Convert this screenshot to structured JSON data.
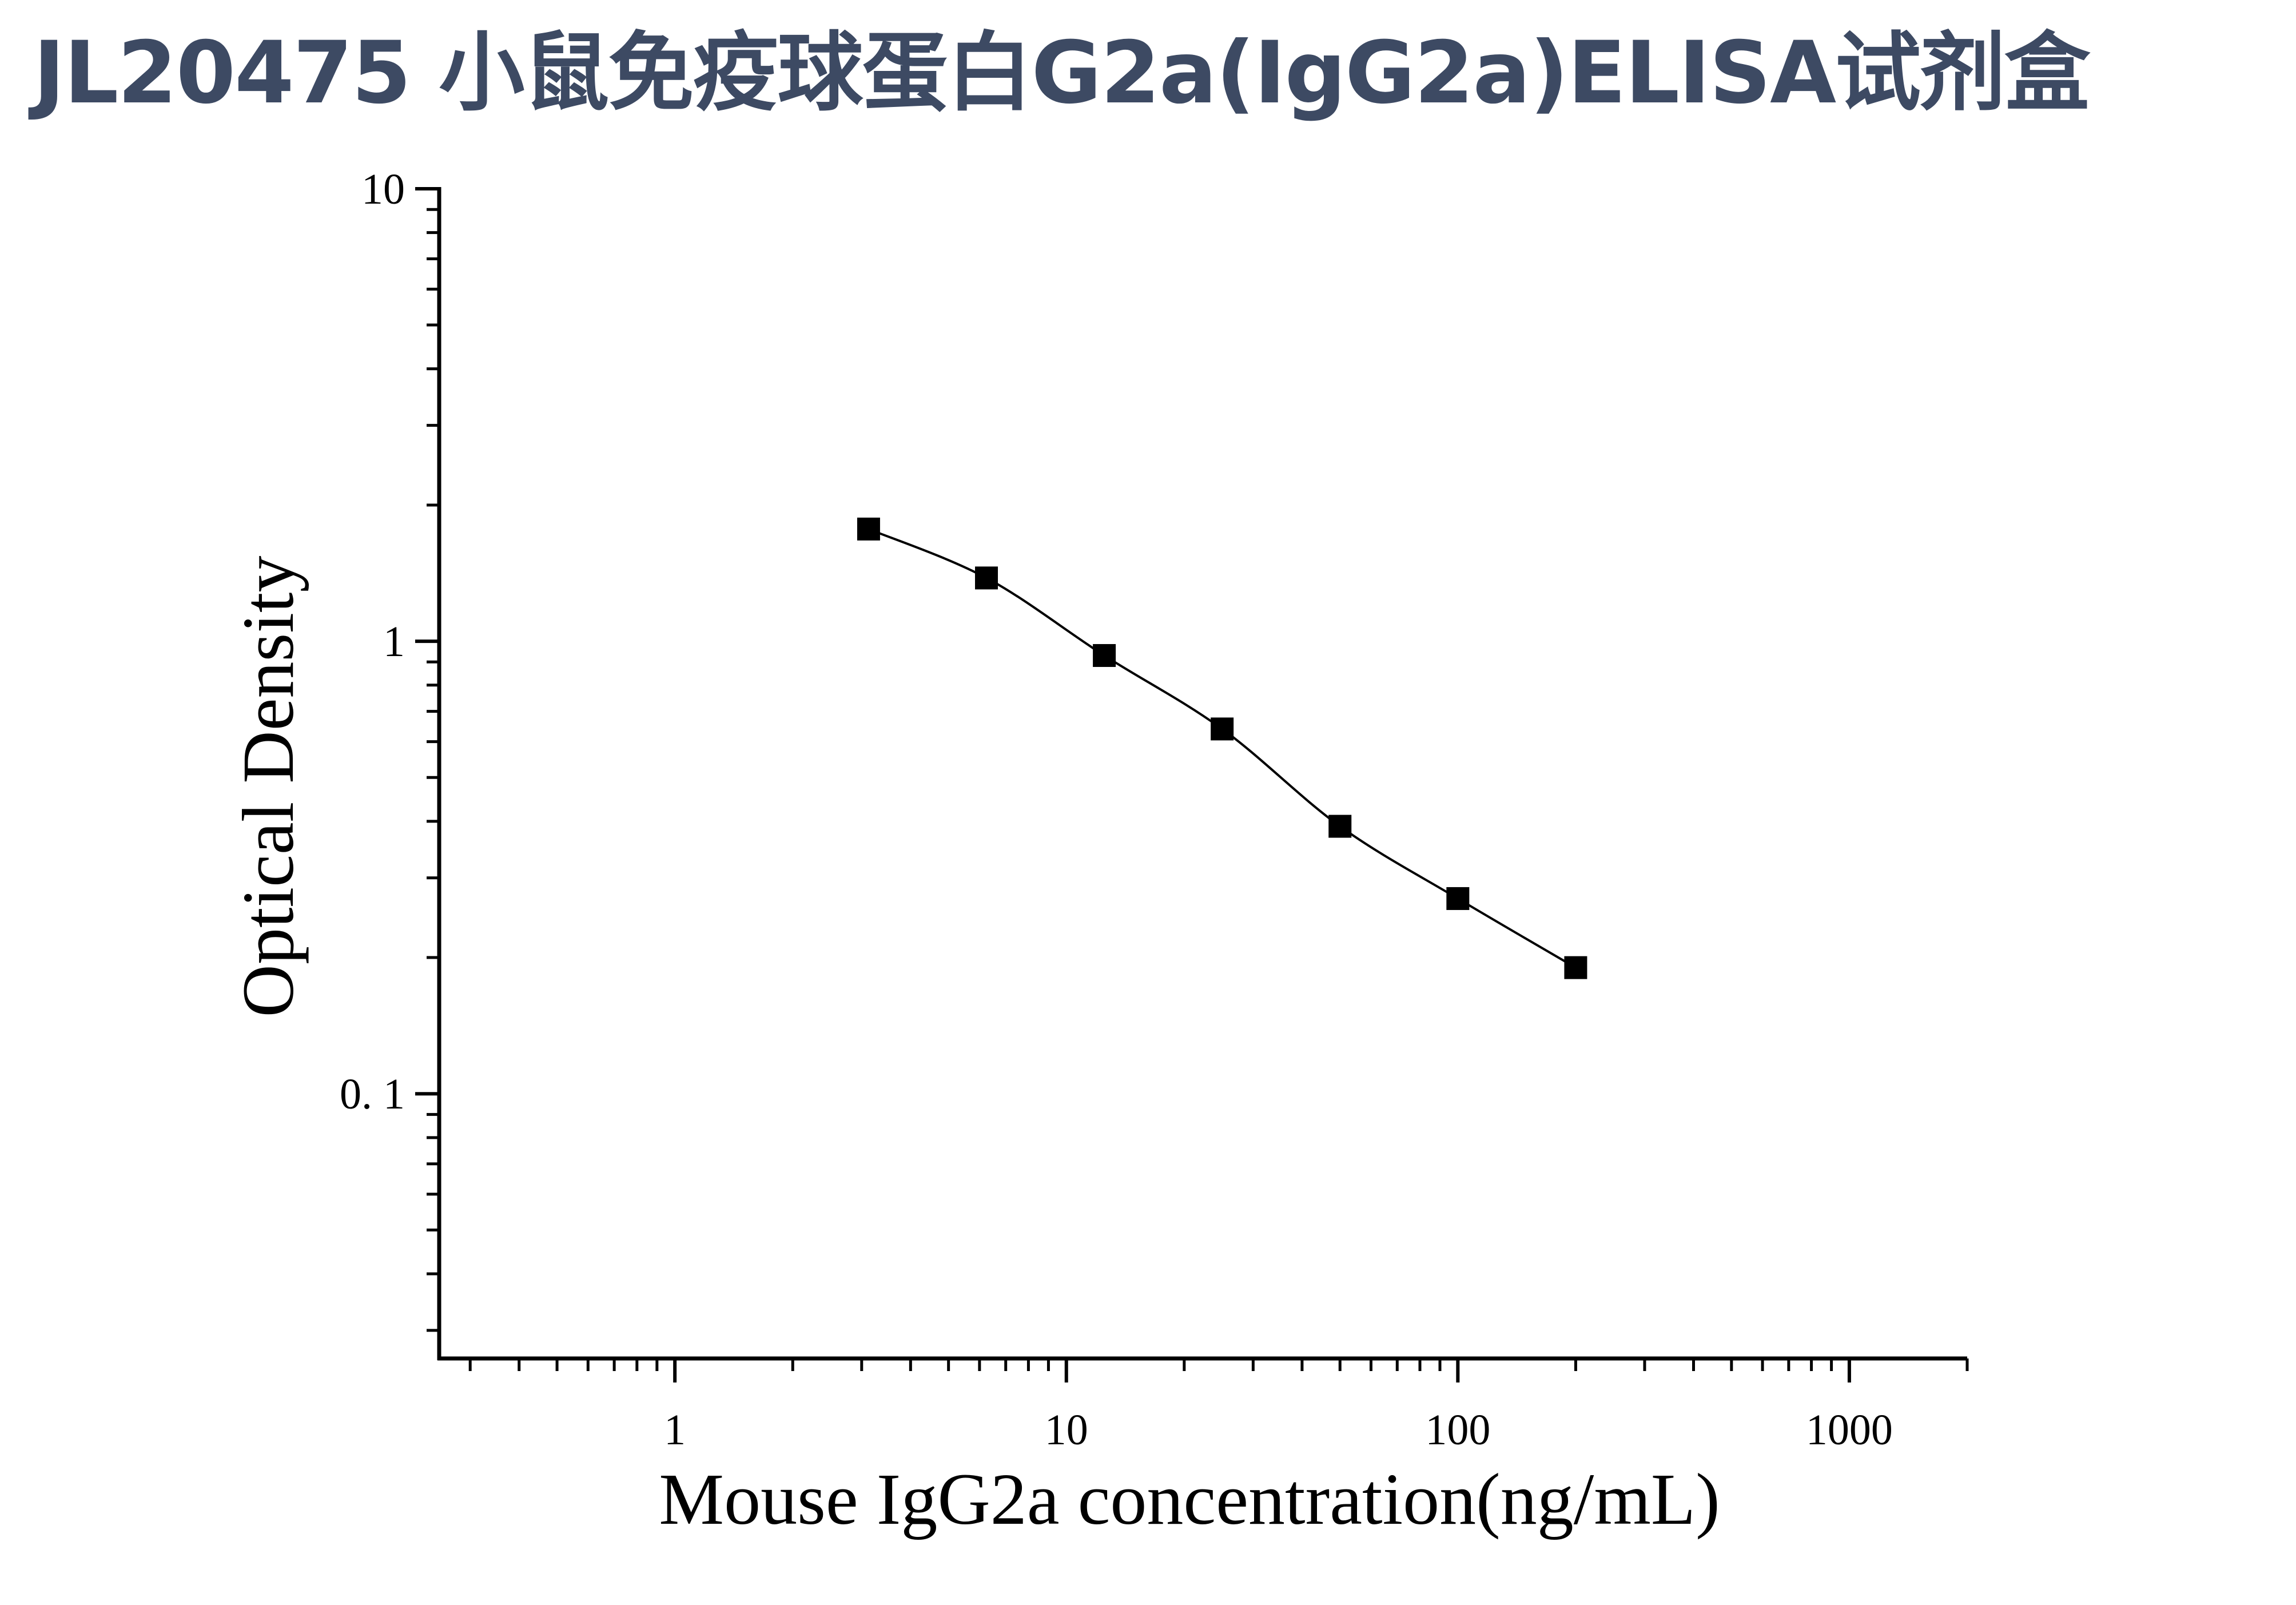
{
  "title": "JL20475 小鼠免疫球蛋白G2a(IgG2a)ELISA试剂盒",
  "colors": {
    "title": "#3d4a63",
    "axis": "#000000",
    "marker": "#000000",
    "curve": "#000000"
  },
  "chart_data": {
    "type": "scatter",
    "xlabel": "Mouse IgG2a concentration(ng/mL)",
    "ylabel": "Optical Density",
    "xscale": "log",
    "yscale": "log",
    "xlim": [
      0.25,
      2000
    ],
    "ylim": [
      0.026,
      10
    ],
    "x_ticks": [
      {
        "value": 1,
        "label": "1"
      },
      {
        "value": 10,
        "label": "10"
      },
      {
        "value": 100,
        "label": "100"
      },
      {
        "value": 1000,
        "label": "1000"
      }
    ],
    "y_ticks": [
      {
        "value": 0.1,
        "label": "0. 1"
      },
      {
        "value": 1,
        "label": "1"
      },
      {
        "value": 10,
        "label": "10"
      }
    ],
    "grid": false,
    "marker": "square",
    "fit_curve": true,
    "series": [
      {
        "x": [
          3.125,
          6.25,
          12.5,
          25,
          50,
          100,
          200
        ],
        "y": [
          1.77,
          1.38,
          0.93,
          0.64,
          0.39,
          0.27,
          0.19
        ]
      }
    ]
  }
}
